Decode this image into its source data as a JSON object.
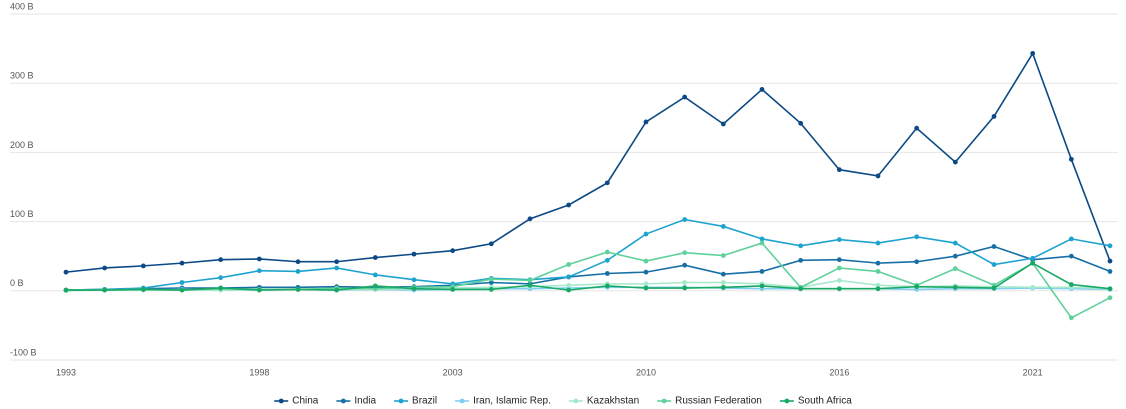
{
  "chart_data": {
    "type": "line",
    "categories": [
      "1993",
      null,
      null,
      null,
      null,
      "1998",
      null,
      null,
      null,
      null,
      "2003",
      null,
      null,
      null,
      null,
      "2010",
      null,
      null,
      null,
      null,
      "2016",
      null,
      null,
      null,
      null,
      "2021",
      null,
      null
    ],
    "ylim": [
      -100,
      400
    ],
    "yticks": [
      {
        "value": -100,
        "label": "-100 B"
      },
      {
        "value": 0,
        "label": "0 B"
      },
      {
        "value": 100,
        "label": "100 B"
      },
      {
        "value": 200,
        "label": "200 B"
      },
      {
        "value": 300,
        "label": "300 B"
      },
      {
        "value": 400,
        "label": "400 B"
      }
    ],
    "grid": true,
    "legend": "bottom",
    "series": [
      {
        "name": "China",
        "color": "#0d4a85",
        "values": [
          27,
          33,
          36,
          40,
          45,
          46,
          42,
          42,
          48,
          53,
          58,
          68,
          104,
          124,
          156,
          244,
          280,
          241,
          291,
          242,
          175,
          166,
          235,
          186,
          252,
          343,
          190,
          43
        ]
      },
      {
        "name": "India",
        "color": "#176fa6",
        "values": [
          1,
          2,
          3,
          4,
          4,
          5,
          5,
          6,
          5,
          6,
          8,
          12,
          10,
          20,
          25,
          27,
          37,
          24,
          28,
          44,
          45,
          40,
          42,
          50,
          64,
          45,
          50,
          28
        ]
      },
      {
        "name": "Brazil",
        "color": "#1ea3cf",
        "values": [
          1,
          2,
          4,
          12,
          19,
          29,
          28,
          33,
          23,
          16,
          10,
          18,
          16,
          20,
          44,
          82,
          103,
          93,
          75,
          65,
          74,
          69,
          78,
          69,
          38,
          47,
          75,
          65
        ]
      },
      {
        "name": "Iran, Islamic Rep.",
        "color": "#7fd0ef",
        "values": [
          1,
          1,
          1,
          2,
          1,
          1,
          2,
          1,
          2,
          1,
          2,
          3,
          3,
          4,
          5,
          5,
          5,
          4,
          3,
          3,
          3,
          3,
          2,
          3,
          3,
          4,
          3,
          2
        ]
      },
      {
        "name": "Kazakhstan",
        "color": "#a6e8cb",
        "values": [
          0,
          1,
          1,
          1,
          1,
          1,
          2,
          2,
          2,
          3,
          4,
          5,
          6,
          8,
          10,
          10,
          12,
          12,
          10,
          5,
          15,
          8,
          6,
          7,
          6,
          5,
          5,
          3
        ]
      },
      {
        "name": "Russian Federation",
        "color": "#5fd19b",
        "values": [
          1,
          1,
          2,
          1,
          3,
          2,
          2,
          4,
          3,
          5,
          6,
          17,
          15,
          38,
          56,
          43,
          55,
          51,
          69,
          5,
          33,
          28,
          8,
          32,
          8,
          40,
          -39,
          -10
        ]
      },
      {
        "name": "South Africa",
        "color": "#1aa865",
        "values": [
          1,
          1,
          2,
          1,
          4,
          1,
          2,
          1,
          7,
          3,
          2,
          2,
          8,
          1,
          7,
          4,
          4,
          5,
          7,
          3,
          3,
          3,
          6,
          5,
          4,
          40,
          9,
          3
        ]
      }
    ]
  }
}
